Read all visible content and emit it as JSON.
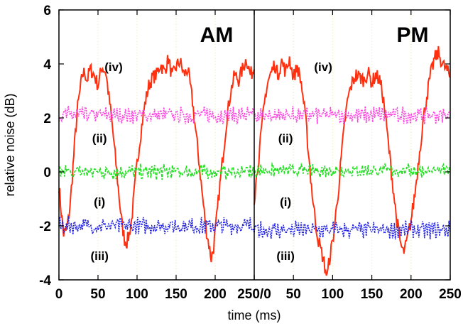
{
  "chart_data": {
    "type": "line",
    "xlabel": "time (ms)",
    "ylabel": "relative noise (dB)",
    "ylim": [
      -4,
      6
    ],
    "y_ticks": [
      "-4",
      "-2",
      "0",
      "2",
      "4",
      "6"
    ],
    "grid": "vertical dotted",
    "panels": [
      {
        "title": "AM",
        "xlim": [
          0,
          250
        ],
        "x_ticks": [
          "0",
          "50",
          "100",
          "150",
          "200",
          "250"
        ],
        "curve_labels": [
          {
            "text": "(iv)",
            "x": 70,
            "y": 3.9
          },
          {
            "text": "(ii)",
            "x": 52,
            "y": 1.25
          },
          {
            "text": "(i)",
            "x": 52,
            "y": -1.1
          },
          {
            "text": "(iii)",
            "x": 52,
            "y": -3.1
          }
        ],
        "series": [
          {
            "label": "(iv)",
            "color": "#ff3010",
            "style": "solid",
            "x": [
              0,
              3,
              6,
              9,
              12,
              15,
              18,
              21,
              24,
              27,
              30,
              33,
              36,
              40,
              45,
              50,
              55,
              60,
              63,
              66,
              69,
              72,
              75,
              78,
              81,
              84,
              87,
              90,
              93,
              96,
              100,
              105,
              110,
              115,
              120,
              125,
              130,
              135,
              140,
              145,
              150,
              155,
              160,
              165,
              168,
              171,
              174,
              177,
              180,
              183,
              186,
              189,
              192,
              195,
              198,
              201,
              205,
              210,
              215,
              220,
              225,
              230,
              235,
              240,
              245,
              250
            ],
            "y": [
              -0.5,
              -1.5,
              -2.3,
              -2.2,
              -1.8,
              -1.0,
              0.2,
              1.4,
              2.4,
              3.0,
              3.6,
              3.7,
              3.4,
              3.8,
              3.6,
              3.2,
              3.9,
              3.7,
              3.0,
              2.3,
              1.5,
              0.6,
              -0.3,
              -1.2,
              -2.0,
              -2.5,
              -2.6,
              -2.3,
              -1.8,
              -0.9,
              0.3,
              1.5,
              2.5,
              3.2,
              3.5,
              3.6,
              4.0,
              3.7,
              4.2,
              3.5,
              3.9,
              4.1,
              3.6,
              3.8,
              3.2,
              2.6,
              1.8,
              1.0,
              0.2,
              -0.7,
              -1.5,
              -2.2,
              -2.7,
              -3.2,
              -2.8,
              -2.0,
              -0.8,
              0.6,
              2.0,
              3.0,
              3.6,
              3.4,
              3.8,
              4.2,
              3.6,
              3.8
            ]
          },
          {
            "label": "(ii)",
            "color": "#ff40e0",
            "style": "dotted",
            "amplitude": 0.4,
            "value": 2.1,
            "x": [
              0,
              250
            ],
            "y": [
              2.1,
              2.1
            ]
          },
          {
            "label": "(i)",
            "color": "#20e020",
            "style": "dashed",
            "amplitude": 0.35,
            "value": 0.0,
            "x": [
              0,
              250
            ],
            "y": [
              0.0,
              0.0
            ]
          },
          {
            "label": "(iii)",
            "color": "#2020e0",
            "style": "dotted",
            "amplitude": 0.4,
            "value": -2.0,
            "x": [
              0,
              250
            ],
            "y": [
              -2.0,
              -2.0
            ]
          }
        ]
      },
      {
        "title": "PM",
        "xlim": [
          0,
          250
        ],
        "x_ticks": [
          "0",
          "50",
          "100",
          "150",
          "200",
          "250"
        ],
        "joint_tick": "250/0",
        "curve_labels": [
          {
            "text": "(iv)",
            "x": 88,
            "y": 3.9
          },
          {
            "text": "(ii)",
            "x": 40,
            "y": 1.25
          },
          {
            "text": "(i)",
            "x": 40,
            "y": -1.1
          },
          {
            "text": "(iii)",
            "x": 40,
            "y": -3.1
          }
        ],
        "series": [
          {
            "label": "(iv)",
            "color": "#ff3010",
            "style": "solid",
            "x": [
              0,
              3,
              6,
              9,
              12,
              15,
              18,
              22,
              26,
              30,
              35,
              40,
              45,
              50,
              55,
              60,
              63,
              66,
              69,
              72,
              75,
              78,
              81,
              84,
              87,
              90,
              93,
              96,
              100,
              104,
              108,
              112,
              116,
              120,
              125,
              130,
              135,
              140,
              145,
              150,
              155,
              160,
              163,
              166,
              169,
              172,
              175,
              178,
              181,
              184,
              187,
              190,
              193,
              196,
              200,
              205,
              210,
              215,
              220,
              225,
              230,
              235,
              240,
              245,
              250
            ],
            "y": [
              -1.0,
              -0.2,
              0.6,
              1.4,
              2.3,
              3.0,
              3.4,
              3.7,
              4.0,
              3.6,
              4.1,
              3.7,
              4.2,
              3.5,
              3.9,
              3.3,
              2.6,
              1.8,
              0.8,
              -0.2,
              -1.1,
              -1.8,
              -2.4,
              -2.8,
              -3.1,
              -3.5,
              -3.9,
              -3.2,
              -2.6,
              -1.6,
              -0.5,
              0.8,
              2.0,
              2.8,
              3.3,
              3.6,
              3.5,
              3.4,
              3.7,
              3.3,
              3.6,
              3.4,
              3.0,
              2.4,
              1.6,
              0.8,
              0.0,
              -0.8,
              -1.6,
              -2.2,
              -2.7,
              -3.0,
              -2.8,
              -2.4,
              -1.8,
              -0.8,
              0.5,
              1.8,
              2.8,
              3.6,
              4.2,
              4.4,
              4.0,
              3.8,
              3.5
            ]
          },
          {
            "label": "(ii)",
            "color": "#ff40e0",
            "style": "dotted",
            "amplitude": 0.4,
            "value": 2.1,
            "x": [
              0,
              250
            ],
            "y": [
              2.1,
              2.1
            ]
          },
          {
            "label": "(i)",
            "color": "#20e020",
            "style": "dashed",
            "amplitude": 0.3,
            "value": 0.05,
            "x": [
              0,
              250
            ],
            "y": [
              0.05,
              0.05
            ]
          },
          {
            "label": "(iii)",
            "color": "#2020e0",
            "style": "dotted",
            "amplitude": 0.4,
            "value": -2.15,
            "x": [
              0,
              250
            ],
            "y": [
              -2.15,
              -2.15
            ]
          }
        ]
      }
    ]
  }
}
